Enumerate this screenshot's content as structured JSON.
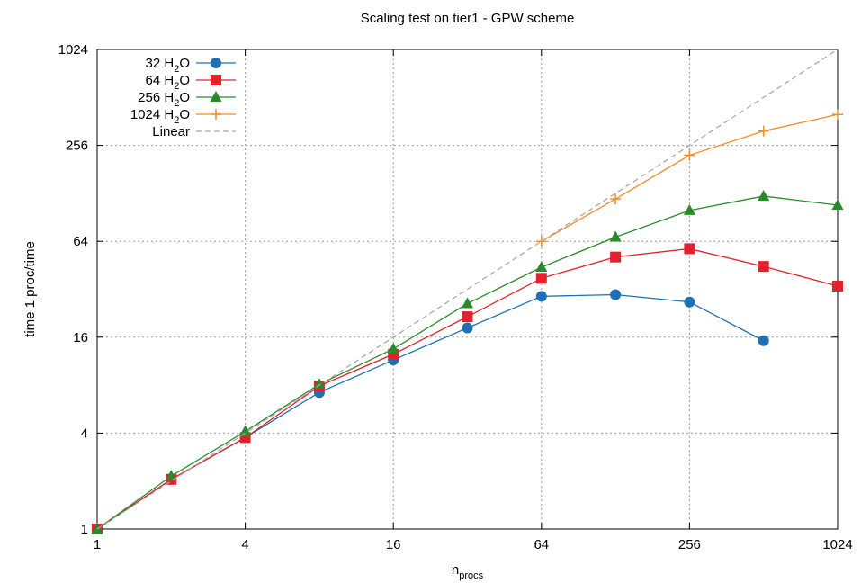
{
  "chart_data": {
    "type": "line",
    "title": "Scaling test on tier1 - GPW scheme",
    "xlabel_main": "n",
    "xlabel_sub": "procs",
    "ylabel": "time 1 proc/time",
    "xscale": "log2",
    "yscale": "log2",
    "xlim": [
      1,
      1024
    ],
    "ylim": [
      1,
      1024
    ],
    "xticks": [
      1,
      4,
      16,
      64,
      256,
      1024
    ],
    "yticks": [
      1,
      4,
      16,
      64,
      256,
      1024
    ],
    "grid": true,
    "legend_position": "top-left",
    "series": [
      {
        "name_main": "32 H",
        "name_sub": "2",
        "name_end": "O",
        "color": "#1f6fb5",
        "marker": "circle",
        "x": [
          1,
          2,
          4,
          8,
          16,
          32,
          64,
          128,
          256,
          512
        ],
        "y": [
          1,
          2.05,
          3.75,
          7.2,
          11.5,
          18.3,
          28.9,
          29.6,
          26.6,
          15.2
        ]
      },
      {
        "name_main": "64 H",
        "name_sub": "2",
        "name_end": "O",
        "color": "#e3212c",
        "marker": "square",
        "x": [
          1,
          2,
          4,
          8,
          16,
          32,
          64,
          128,
          256,
          512,
          1024
        ],
        "y": [
          1,
          2.05,
          3.75,
          7.9,
          12.5,
          21.5,
          37.5,
          51.0,
          57.5,
          44.5,
          33.5
        ]
      },
      {
        "name_main": "256 H",
        "name_sub": "2",
        "name_end": "O",
        "color": "#2a8a2a",
        "marker": "triangle",
        "x": [
          1,
          2,
          4,
          8,
          16,
          32,
          64,
          128,
          256,
          512,
          1024
        ],
        "y": [
          1,
          2.15,
          4.1,
          8.1,
          13.5,
          26.0,
          44.0,
          68.0,
          100.0,
          123.0,
          108.0
        ]
      },
      {
        "name_main": "1024 H",
        "name_sub": "2",
        "name_end": "O",
        "color": "#f28c28",
        "marker": "plus",
        "x": [
          64,
          128,
          256,
          512,
          1024
        ],
        "y": [
          64,
          118,
          222,
          315,
          400
        ]
      },
      {
        "name_main": "Linear",
        "name_sub": "",
        "name_end": "",
        "color": "#aaaaaa",
        "marker": "dashed",
        "x": [
          1,
          1024
        ],
        "y": [
          1,
          1024
        ]
      }
    ]
  }
}
